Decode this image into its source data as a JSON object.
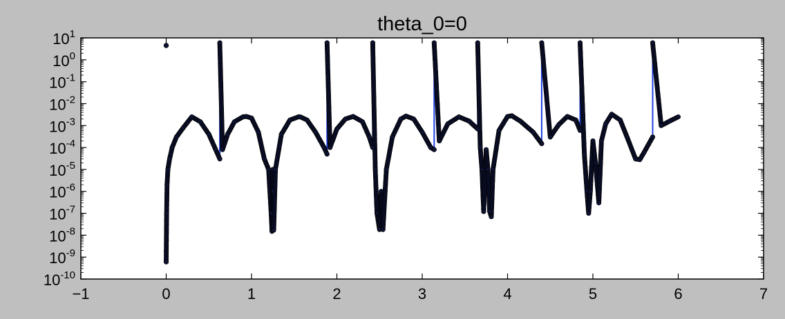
{
  "chart_data": {
    "type": "line",
    "title": "theta_0=0",
    "xlabel": "",
    "ylabel": "",
    "xlim": [
      -1,
      7
    ],
    "ylim": [
      1e-10,
      10
    ],
    "yscale": "log",
    "grid": false,
    "x_ticks": [
      "−1",
      "0",
      "1",
      "2",
      "3",
      "4",
      "5",
      "6",
      "7"
    ],
    "y_ticks": [
      {
        "base": "10",
        "exp": "-10"
      },
      {
        "base": "10",
        "exp": "-9"
      },
      {
        "base": "10",
        "exp": "-8"
      },
      {
        "base": "10",
        "exp": "-7"
      },
      {
        "base": "10",
        "exp": "-6"
      },
      {
        "base": "10",
        "exp": "-5"
      },
      {
        "base": "10",
        "exp": "-4"
      },
      {
        "base": "10",
        "exp": "-3"
      },
      {
        "base": "10",
        "exp": "-2"
      },
      {
        "base": "10",
        "exp": "-1"
      },
      {
        "base": "10",
        "exp": "0"
      },
      {
        "base": "10",
        "exp": "1"
      }
    ],
    "line_color": "#1f3fe0",
    "marker_color": "#0d1230",
    "series": [
      {
        "x": [
          0.0,
          0.005,
          0.01,
          0.02,
          0.04,
          0.07,
          0.12,
          0.2,
          0.3,
          0.4,
          0.5,
          0.58,
          0.628,
          0.628,
          0.66,
          0.72,
          0.8,
          0.9,
          0.94,
          1.0,
          1.08,
          1.15,
          1.2,
          1.23,
          1.24,
          1.245,
          1.25,
          1.255,
          1.26,
          1.28,
          1.35,
          1.45,
          1.55,
          1.57,
          1.65,
          1.75,
          1.85,
          1.885,
          1.885,
          1.92,
          2.0,
          2.1,
          2.19,
          2.3,
          2.38,
          2.42,
          2.42,
          2.45,
          2.47,
          2.5,
          2.52,
          2.54,
          2.58,
          2.65,
          2.75,
          2.81,
          2.9,
          3.0,
          3.1,
          3.14,
          3.14,
          3.2,
          3.3,
          3.43,
          3.55,
          3.65,
          3.65,
          3.68,
          3.7,
          3.72,
          3.75,
          3.77,
          3.79,
          3.81,
          3.83,
          3.9,
          4.0,
          4.05,
          4.15,
          4.3,
          4.4,
          4.4,
          4.5,
          4.6,
          4.7,
          4.8,
          4.85,
          4.85,
          4.9,
          4.93,
          4.95,
          4.97,
          5.0,
          5.03,
          5.07,
          5.1,
          5.15,
          5.22,
          5.32,
          5.4,
          5.5,
          5.55,
          5.6,
          5.7,
          5.7,
          5.8,
          5.9,
          6.0
        ],
        "y": [
          6e-10,
          1e-07,
          2e-06,
          1e-05,
          3e-05,
          0.0001,
          0.0003,
          0.0008,
          0.0025,
          0.0015,
          0.0004,
          8e-05,
          3e-05,
          6,
          8e-05,
          0.0004,
          0.0015,
          0.0025,
          0.0026,
          0.0022,
          0.0005,
          3e-05,
          1e-05,
          1e-07,
          1.5e-08,
          1e-06,
          1e-05,
          1e-06,
          1.7e-08,
          1e-05,
          0.0004,
          0.0018,
          0.0025,
          0.0025,
          0.0018,
          0.0005,
          0.0001,
          5e-05,
          6,
          0.0001,
          0.0007,
          0.002,
          0.0026,
          0.0015,
          0.0003,
          0.0001,
          6,
          1e-05,
          1e-07,
          1.8e-08,
          1e-06,
          1.8e-08,
          1e-05,
          0.0003,
          0.002,
          0.0027,
          0.002,
          0.0005,
          0.0001,
          8e-05,
          6,
          0.0002,
          0.0012,
          0.0025,
          0.0016,
          0.0007,
          6,
          0.0001,
          1e-05,
          1.2e-07,
          8e-05,
          1e-05,
          1.2e-07,
          7e-08,
          1e-05,
          0.0006,
          0.0026,
          0.0028,
          0.0016,
          0.0005,
          0.00015,
          6,
          0.0003,
          0.0011,
          0.0026,
          0.0018,
          0.0006,
          6,
          5e-05,
          1e-06,
          1e-07,
          1e-06,
          0.0002,
          2e-05,
          3e-07,
          0.0002,
          0.0012,
          0.0033,
          0.0018,
          0.0003,
          3e-05,
          2.8e-05,
          6e-05,
          0.0003,
          6,
          0.001,
          0.0016,
          0.0025
        ]
      },
      {
        "x": [
          0.0
        ],
        "y": [
          4.5
        ]
      }
    ]
  }
}
